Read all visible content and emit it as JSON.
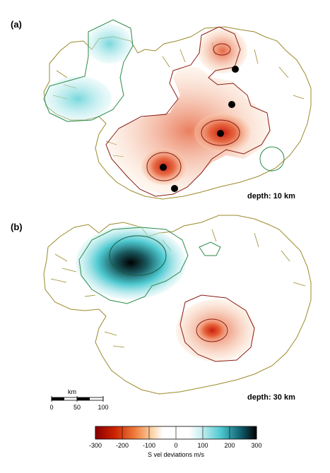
{
  "panels": [
    {
      "label": "(a)",
      "depth": "depth: 10 km"
    },
    {
      "label": "(b)",
      "depth": "depth: 30 km"
    }
  ],
  "scale_bar": {
    "unit": "km",
    "ticks": [
      "0",
      "50",
      "100"
    ]
  },
  "colorbar": {
    "title": "S vel deviations m/s",
    "ticks": [
      "-300",
      "-200",
      "-100",
      "0",
      "100",
      "200",
      "300"
    ],
    "colors": [
      "#8b0000",
      "#cc2200",
      "#e8601c",
      "#f5a05a",
      "#fbd9b0",
      "#ffffff",
      "#ffffff",
      "#c8eef0",
      "#6fd6dc",
      "#2bb3c0",
      "#106070",
      "#000000"
    ]
  },
  "colors": {
    "slow": "#e4572e",
    "fast": "#3cc4cc",
    "coast": "#9a8a2a",
    "contour_red": "#8a1a10",
    "contour_green": "#2a8a4a"
  }
}
